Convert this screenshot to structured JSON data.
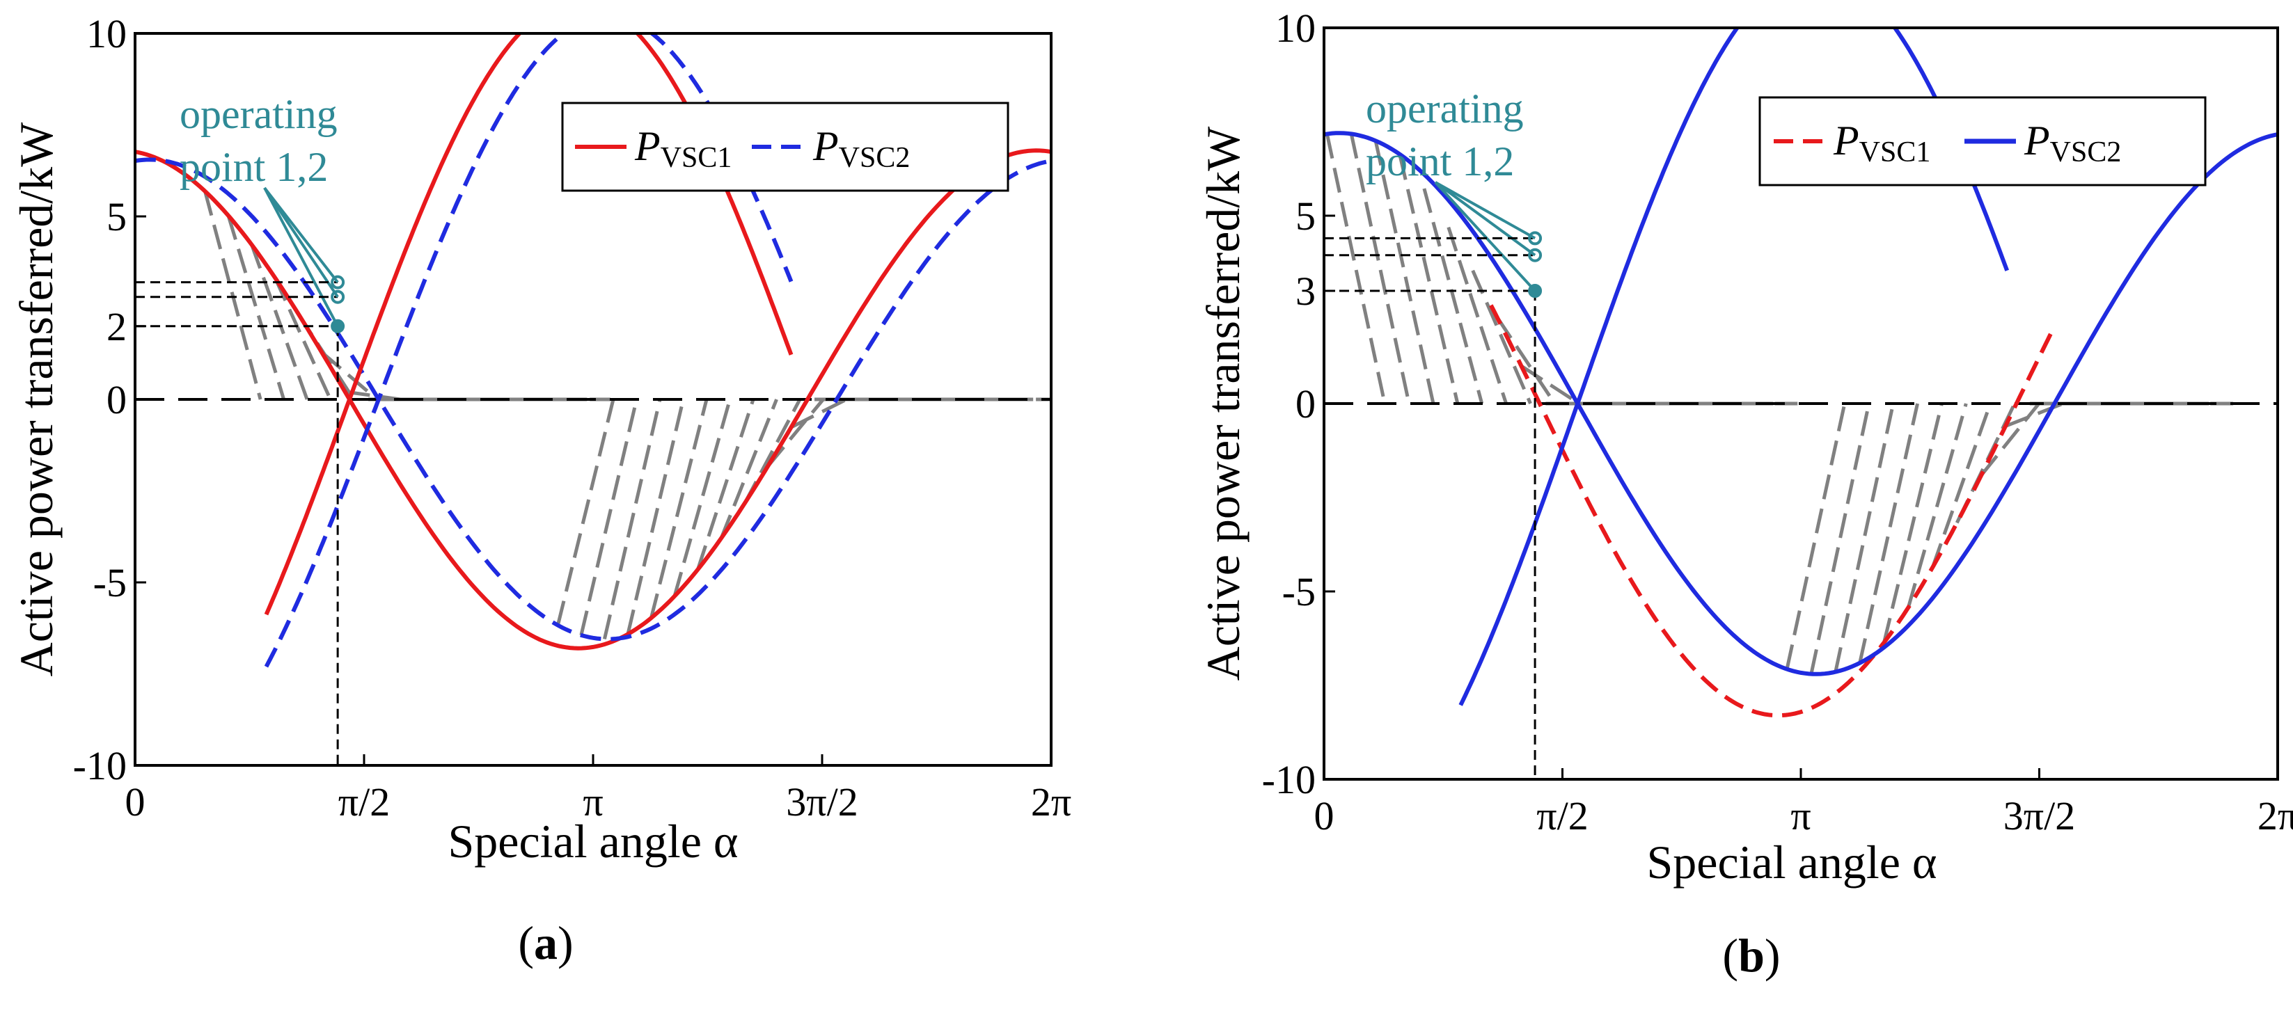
{
  "chart_data": [
    {
      "panel": "a",
      "type": "line",
      "caption": {
        "open": "(",
        "letter": "a",
        "close": ")"
      },
      "xlabel": "Special angle α",
      "ylabel": "Active power transferred/kW",
      "xlim": [
        0,
        6.2832
      ],
      "ylim": [
        -10,
        10
      ],
      "x_ticks": [
        {
          "value": 0,
          "label": "0"
        },
        {
          "value": 1.5708,
          "label": "π/2"
        },
        {
          "value": 3.1416,
          "label": "π"
        },
        {
          "value": 4.7124,
          "label": "3π/2"
        },
        {
          "value": 6.2832,
          "label": "2π"
        }
      ],
      "y_ticks": [
        {
          "value": 10,
          "label": "10"
        },
        {
          "value": 5,
          "label": "5"
        },
        {
          "value": 2,
          "label": "2"
        },
        {
          "value": 0,
          "label": "0"
        },
        {
          "value": -5,
          "label": "-5"
        },
        {
          "value": -10,
          "label": "-10"
        }
      ],
      "series": [
        {
          "name": "PVSC1",
          "label_main": "P",
          "label_sub": "VSC1",
          "color": "#e8191c",
          "style": "solid",
          "A": 6.8,
          "phase": 0.1,
          "xmin": 0,
          "xmax": 6.2832
        },
        {
          "name": "PVSC2",
          "label_main": "P",
          "label_sub": "VSC2",
          "color": "#1f2be0",
          "style": "dashed",
          "A": 6.55,
          "phase": -0.1,
          "xmin": 0,
          "xmax": 6.2832
        }
      ],
      "mirror_series": [
        {
          "of": "PVSC1",
          "xmin": 0.9,
          "xmax": 4.5
        },
        {
          "of": "PVSC2",
          "xmin": 0.9,
          "xmax": 4.5
        }
      ],
      "hatch_regions": [
        {
          "from": 0.48,
          "to": 2.9,
          "side": "positive"
        },
        {
          "from": 2.9,
          "to": 5.95,
          "side": "negative"
        }
      ],
      "operating_point": {
        "x": 1.39,
        "y_values": [
          2,
          2.8,
          3.2
        ],
        "label_lines": [
          "operating",
          "point 1,2"
        ]
      },
      "legend": {
        "position": "top-right"
      }
    },
    {
      "panel": "b",
      "type": "line",
      "caption": {
        "open": "(",
        "letter": "b",
        "close": ")"
      },
      "xlabel": "Special angle α",
      "ylabel": "Active power transferred/kW",
      "xlim": [
        0,
        6.2832
      ],
      "ylim": [
        -10,
        10
      ],
      "x_ticks": [
        {
          "value": 0,
          "label": "0"
        },
        {
          "value": 1.5708,
          "label": "π/2"
        },
        {
          "value": 3.1416,
          "label": "π"
        },
        {
          "value": 4.7124,
          "label": "3π/2"
        },
        {
          "value": 6.2832,
          "label": "2π"
        }
      ],
      "y_ticks": [
        {
          "value": 10,
          "label": "10"
        },
        {
          "value": 5,
          "label": "5"
        },
        {
          "value": 3,
          "label": "3"
        },
        {
          "value": 0,
          "label": "0"
        },
        {
          "value": -5,
          "label": "-5"
        },
        {
          "value": -10,
          "label": "-10"
        }
      ],
      "series": [
        {
          "name": "PVSC1",
          "label_main": "P",
          "label_sub": "VSC1",
          "color": "#e8191c",
          "style": "dashed",
          "A": 8.3,
          "phase": 0.15,
          "xmin": 1.1,
          "xmax": 4.8
        },
        {
          "name": "PVSC2",
          "label_main": "P",
          "label_sub": "VSC2",
          "color": "#1f2be0",
          "style": "solid",
          "A": 7.2,
          "phase": -0.1,
          "xmin": 0,
          "xmax": 6.2832
        }
      ],
      "mirror_series": [
        {
          "of": "PVSC2",
          "xmin": 0.9,
          "xmax": 4.5
        }
      ],
      "hatch_regions": [
        {
          "from": 0.02,
          "to": 2.9,
          "side": "positive"
        },
        {
          "from": 3.05,
          "to": 5.7,
          "side": "negative"
        }
      ],
      "operating_point": {
        "x": 1.39,
        "y_values": [
          3,
          3.95,
          4.4
        ],
        "label_lines": [
          "operating",
          "point 1,2"
        ]
      },
      "legend": {
        "position": "top-right"
      }
    }
  ]
}
